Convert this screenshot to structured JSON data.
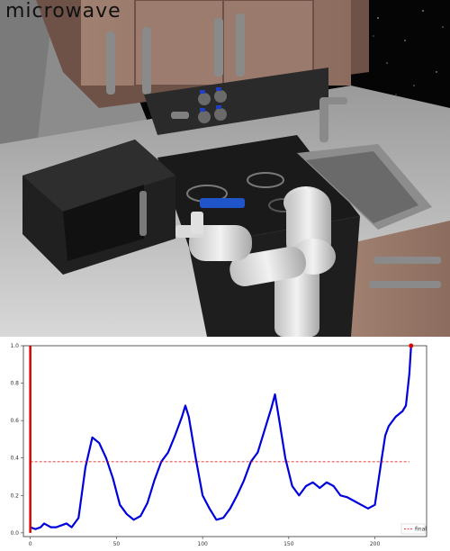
{
  "scene": {
    "title": "microwave"
  },
  "chart_data": {
    "type": "line",
    "xlim": [
      -4,
      230
    ],
    "ylim": [
      -0.02,
      1.0
    ],
    "xticks": [
      "0",
      "50",
      "100",
      "150",
      "200"
    ],
    "yticks": [
      "0.0",
      "0.2",
      "0.4",
      "0.6",
      "0.8",
      "1.0"
    ],
    "legend_position": "bottom-right",
    "grid": false,
    "series": [
      {
        "color": "#0000dd",
        "style": "solid",
        "x": [
          0,
          3,
          6,
          8,
          10,
          12,
          15,
          18,
          21,
          24,
          28,
          32,
          36,
          40,
          44,
          48,
          52,
          56,
          60,
          64,
          68,
          72,
          76,
          80,
          84,
          88,
          90,
          92,
          96,
          100,
          104,
          108,
          112,
          116,
          120,
          124,
          128,
          132,
          136,
          140,
          142,
          144,
          148,
          152,
          156,
          160,
          164,
          168,
          172,
          176,
          180,
          184,
          188,
          192,
          196,
          200,
          204,
          206,
          208,
          212,
          216,
          218,
          220,
          221
        ],
        "y": [
          0.03,
          0.02,
          0.03,
          0.05,
          0.04,
          0.03,
          0.03,
          0.04,
          0.05,
          0.03,
          0.08,
          0.35,
          0.51,
          0.48,
          0.4,
          0.29,
          0.15,
          0.1,
          0.07,
          0.09,
          0.16,
          0.28,
          0.38,
          0.43,
          0.52,
          0.62,
          0.68,
          0.62,
          0.4,
          0.2,
          0.13,
          0.07,
          0.08,
          0.13,
          0.2,
          0.28,
          0.38,
          0.43,
          0.55,
          0.67,
          0.74,
          0.63,
          0.4,
          0.25,
          0.2,
          0.25,
          0.27,
          0.24,
          0.27,
          0.25,
          0.2,
          0.19,
          0.17,
          0.15,
          0.13,
          0.15,
          0.4,
          0.52,
          0.57,
          0.62,
          0.65,
          0.68,
          0.85,
          1.0
        ]
      },
      {
        "color": "#dd0000",
        "style": "solid",
        "x": [
          0,
          0
        ],
        "y": [
          0.0,
          1.0
        ]
      },
      {
        "name": "final",
        "color": "#dd0000",
        "style": "dashed",
        "x": [
          0,
          220
        ],
        "y": [
          0.38,
          0.38
        ]
      },
      {
        "color": "#dd0000",
        "style": "marker",
        "x": [
          221
        ],
        "y": [
          1.0
        ]
      }
    ]
  }
}
